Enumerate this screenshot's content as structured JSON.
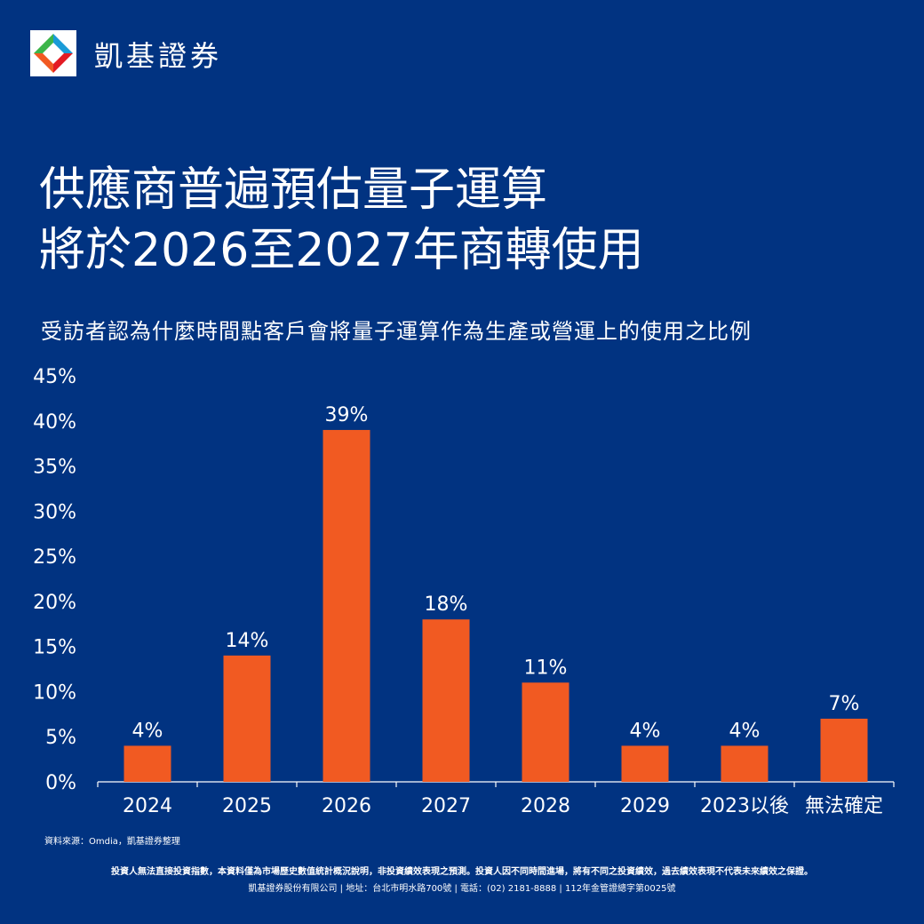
{
  "brand": {
    "name": "凱基證券",
    "logo_icon": "kgi-logo-icon"
  },
  "title_lines": [
    "供應商普遍預估量子運算",
    "將於2026至2027年商轉使用"
  ],
  "subtitle": "受訪者認為什麼時間點客戶會將量子運算作為生產或營運上的使用之比例",
  "chart_data": {
    "type": "bar",
    "categories": [
      "2024",
      "2025",
      "2026",
      "2027",
      "2028",
      "2029",
      "2023以後",
      "無法確定"
    ],
    "values": [
      4,
      14,
      39,
      18,
      11,
      4,
      4,
      7
    ],
    "data_labels": [
      "4%",
      "14%",
      "39%",
      "18%",
      "11%",
      "4%",
      "4%",
      "7%"
    ],
    "ytick_labels": [
      "0%",
      "5%",
      "10%",
      "15%",
      "20%",
      "25%",
      "30%",
      "35%",
      "40%",
      "45%"
    ],
    "ylim": [
      0,
      45
    ],
    "bar_color": "#f15a22",
    "grid": false
  },
  "source": "資料來源：Omdia，凱基證券整理",
  "disclaimer": "投資人無法直接投資指數，本資料僅為市場歷史數值統計概況說明，非投資績效表現之預測。投資人因不同時間進場，將有不同之投資績效，過去績效表現不代表未來績效之保證。",
  "company": "凱基證券股份有限公司 | 地址：台北市明水路700號 | 電話：(02) 2181-8888 | 112年金管證總字第0025號",
  "colors": {
    "background": "#013381",
    "bar": "#f15a22",
    "text": "#ffffff"
  }
}
